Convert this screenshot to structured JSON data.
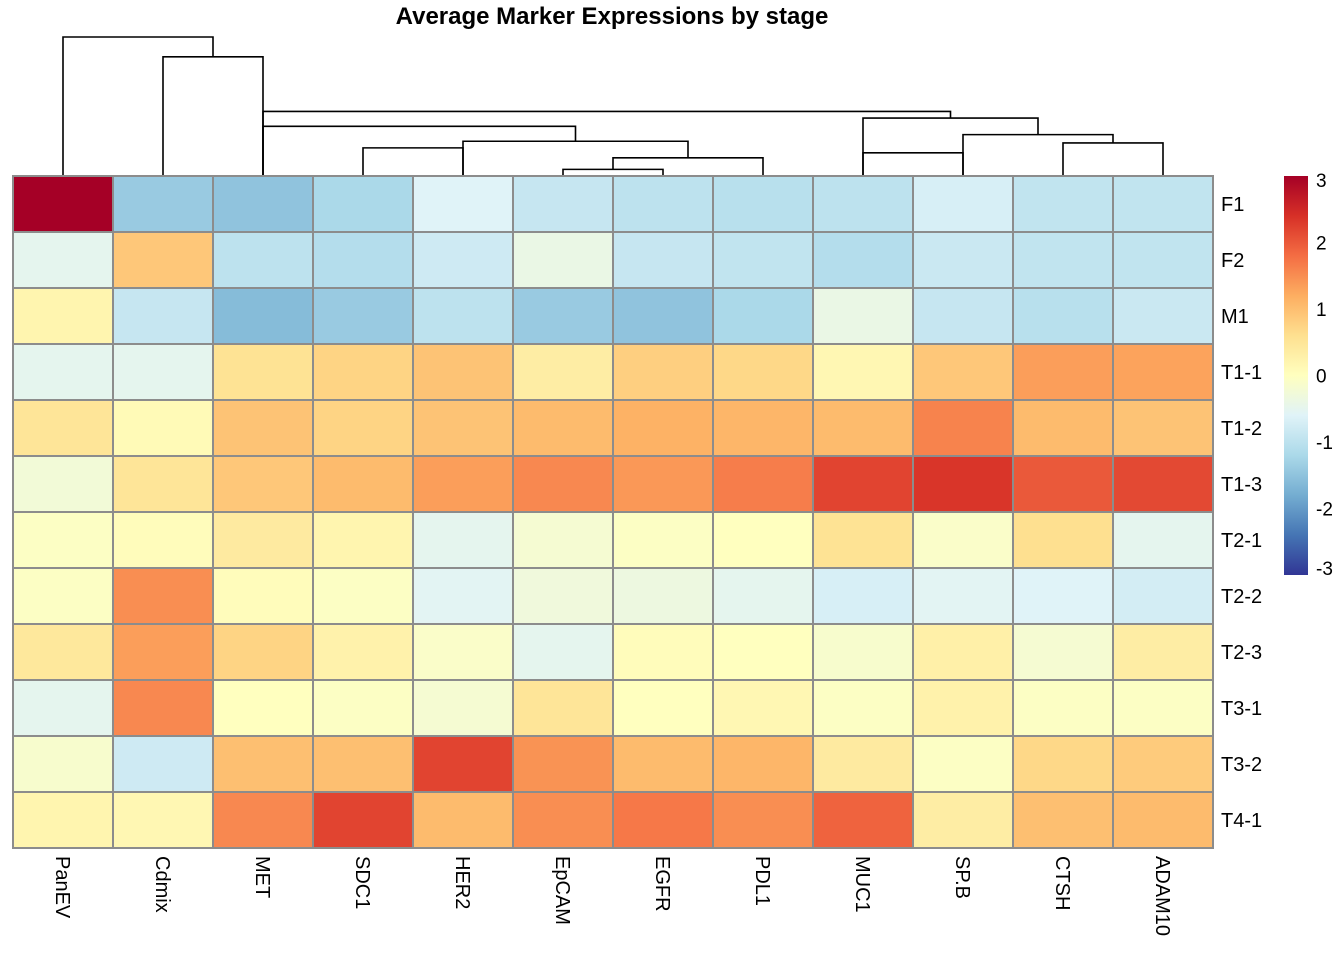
{
  "chart_data": {
    "type": "heatmap",
    "title": "Average Marker Expressions by stage",
    "columns": [
      "PanEV",
      "Cdmix",
      "MET",
      "SDC1",
      "HER2",
      "EpCAM",
      "EGFR",
      "PDL1",
      "MUC1",
      "SP.B",
      "CTSH",
      "ADAM10"
    ],
    "rows": [
      "F1",
      "F2",
      "M1",
      "T1-1",
      "T1-2",
      "T1-3",
      "T2-1",
      "T2-2",
      "T2-3",
      "T3-1",
      "T3-2",
      "T4-1"
    ],
    "values": [
      [
        3.0,
        -1.4,
        -1.5,
        -1.2,
        -0.6,
        -0.9,
        -1.0,
        -1.05,
        -1.0,
        -0.7,
        -0.95,
        -0.95
      ],
      [
        -0.5,
        0.9,
        -1.0,
        -1.1,
        -0.8,
        -0.4,
        -0.9,
        -0.95,
        -1.1,
        -0.85,
        -0.95,
        -0.95
      ],
      [
        0.2,
        -0.9,
        -1.6,
        -1.4,
        -1.0,
        -1.4,
        -1.5,
        -1.2,
        -0.4,
        -0.9,
        -1.05,
        -0.85
      ],
      [
        -0.5,
        -0.5,
        0.55,
        0.75,
        0.95,
        0.35,
        0.8,
        0.7,
        0.15,
        0.9,
        1.35,
        1.3
      ],
      [
        0.5,
        0.1,
        0.95,
        0.75,
        0.95,
        1.05,
        1.15,
        1.1,
        1.05,
        1.6,
        1.05,
        0.95
      ],
      [
        -0.25,
        0.5,
        0.9,
        1.05,
        1.35,
        1.55,
        1.4,
        1.65,
        2.2,
        2.35,
        2.0,
        2.15
      ],
      [
        -0.05,
        0.05,
        0.4,
        0.2,
        -0.5,
        -0.2,
        -0.05,
        0.0,
        0.55,
        -0.1,
        0.6,
        -0.5
      ],
      [
        -0.05,
        1.5,
        0.05,
        -0.05,
        -0.55,
        -0.3,
        -0.35,
        -0.5,
        -0.7,
        -0.55,
        -0.6,
        -0.75
      ],
      [
        0.45,
        1.35,
        0.75,
        0.25,
        -0.1,
        -0.5,
        0.05,
        0.0,
        -0.15,
        0.3,
        -0.2,
        0.35
      ],
      [
        -0.5,
        1.55,
        0.0,
        -0.05,
        -0.2,
        0.5,
        0.0,
        0.15,
        -0.05,
        0.25,
        -0.05,
        -0.05
      ],
      [
        -0.15,
        -0.8,
        1.0,
        1.0,
        2.2,
        1.45,
        1.05,
        1.1,
        0.4,
        -0.05,
        0.7,
        0.85
      ],
      [
        0.2,
        0.15,
        1.55,
        2.2,
        1.05,
        1.5,
        1.7,
        1.5,
        1.9,
        0.35,
        1.0,
        1.05
      ]
    ],
    "col_dendrogram": [
      {
        "a": "5",
        "b": "6",
        "h": 0.2
      },
      {
        "a": "8",
        "b": "9",
        "h": 0.7
      },
      {
        "a": "7",
        "b": "G(5,6)",
        "h": 0.55
      },
      {
        "a": "10",
        "b": "11",
        "h": 1.0
      },
      {
        "a": "3",
        "b": "4",
        "h": 0.85
      },
      {
        "a": "4",
        "b": "G(7,5,6)",
        "h": 1.05
      },
      {
        "a": "9",
        "b": "G(10,11)",
        "h": 1.25
      },
      {
        "a": "G(2,3)",
        "b": "G(4,7,5,6)",
        "h": 1.5
      },
      {
        "a": "8",
        "b": "G(9,10,11)",
        "h": 1.75
      },
      {
        "a": "G(2..6)",
        "b": "G(8..11)",
        "h": 1.95
      },
      {
        "a": "1",
        "b": "G(2..11)",
        "h": 3.6
      },
      {
        "a": "0",
        "b": "G(1..11)",
        "h": 4.2
      }
    ],
    "legend": {
      "ticks": [
        "3",
        "2",
        "1",
        "0",
        "-1",
        "-2",
        "-3"
      ],
      "min": -3,
      "max": 3,
      "colors": [
        "#313695",
        "#4575b4",
        "#74add1",
        "#abd9e9",
        "#e0f3f8",
        "#ffffbf",
        "#fee090",
        "#fdae61",
        "#f46d43",
        "#d73027",
        "#a50026"
      ],
      "placement": "right"
    },
    "cell_border_color": "#8c8c8c",
    "grid": true
  }
}
